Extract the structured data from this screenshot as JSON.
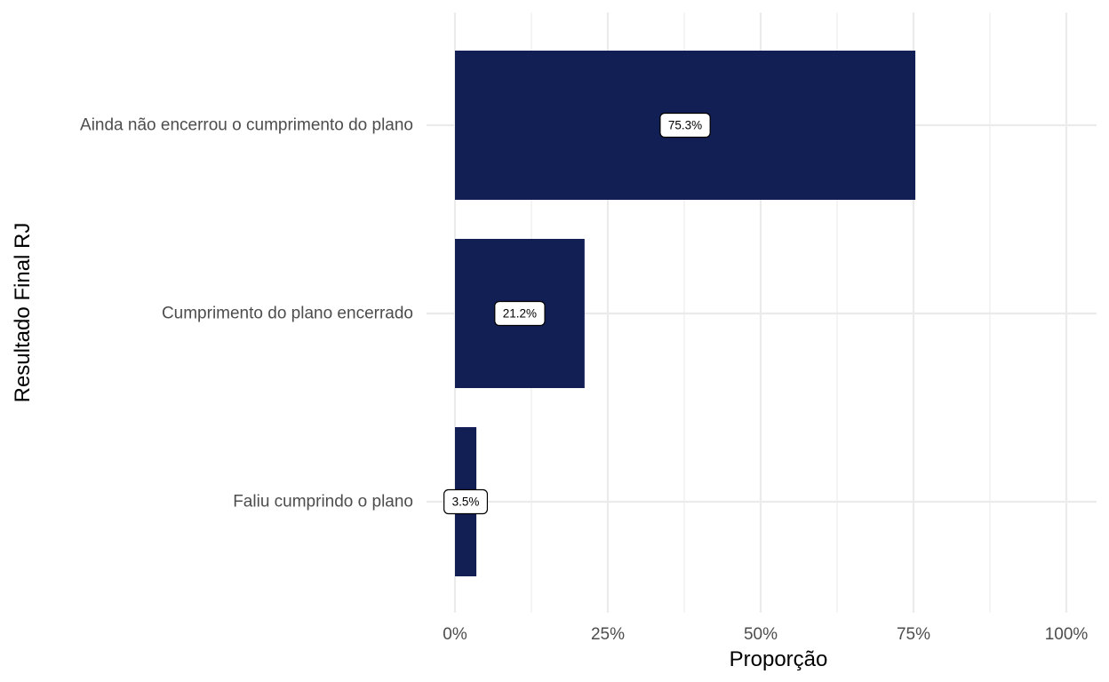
{
  "chart_data": {
    "type": "bar",
    "orientation": "horizontal",
    "categories": [
      "Ainda não encerrou o cumprimento do plano",
      "Cumprimento do plano encerrado",
      "Faliu cumprindo o plano"
    ],
    "values": [
      75.3,
      21.2,
      3.5
    ],
    "data_labels": [
      "75.3%",
      "21.2%",
      "3.5%"
    ],
    "xlabel": "Proporção",
    "ylabel": "Resultado Final RJ",
    "xlim": [
      0,
      100
    ],
    "x_ticks": [
      0,
      25,
      50,
      75,
      100
    ],
    "x_tick_labels": [
      "0%",
      "25%",
      "50%",
      "75%",
      "100%"
    ],
    "grid": true,
    "legend": "none",
    "bar_color": "#111f54"
  }
}
